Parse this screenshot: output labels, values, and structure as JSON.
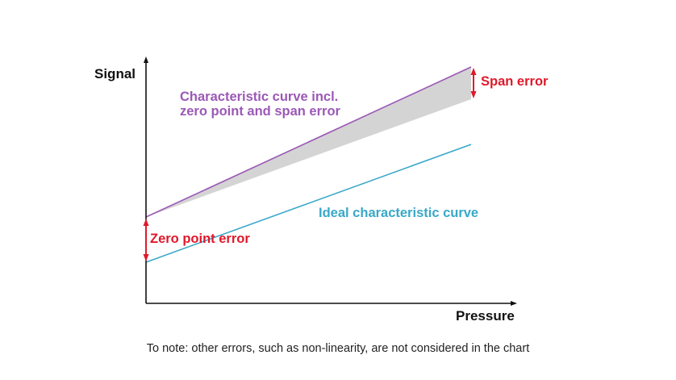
{
  "axes": {
    "y_label": "Signal",
    "x_label": "Pressure"
  },
  "curves": {
    "actual": {
      "label_line1": "Characteristic curve incl.",
      "label_line2": "zero point and span error",
      "color": "#9b59b6"
    },
    "ideal": {
      "label": "Ideal characteristic curve",
      "color": "#3aa8c9"
    }
  },
  "errors": {
    "zero_point": {
      "label": "Zero point error",
      "color": "#e0192b"
    },
    "span": {
      "label": "Span error",
      "color": "#e0192b"
    }
  },
  "error_band_color": "#d4d4d4",
  "axis_color": "#111111",
  "footnote": "To note: other errors, such as non-linearity, are not considered in the chart"
}
